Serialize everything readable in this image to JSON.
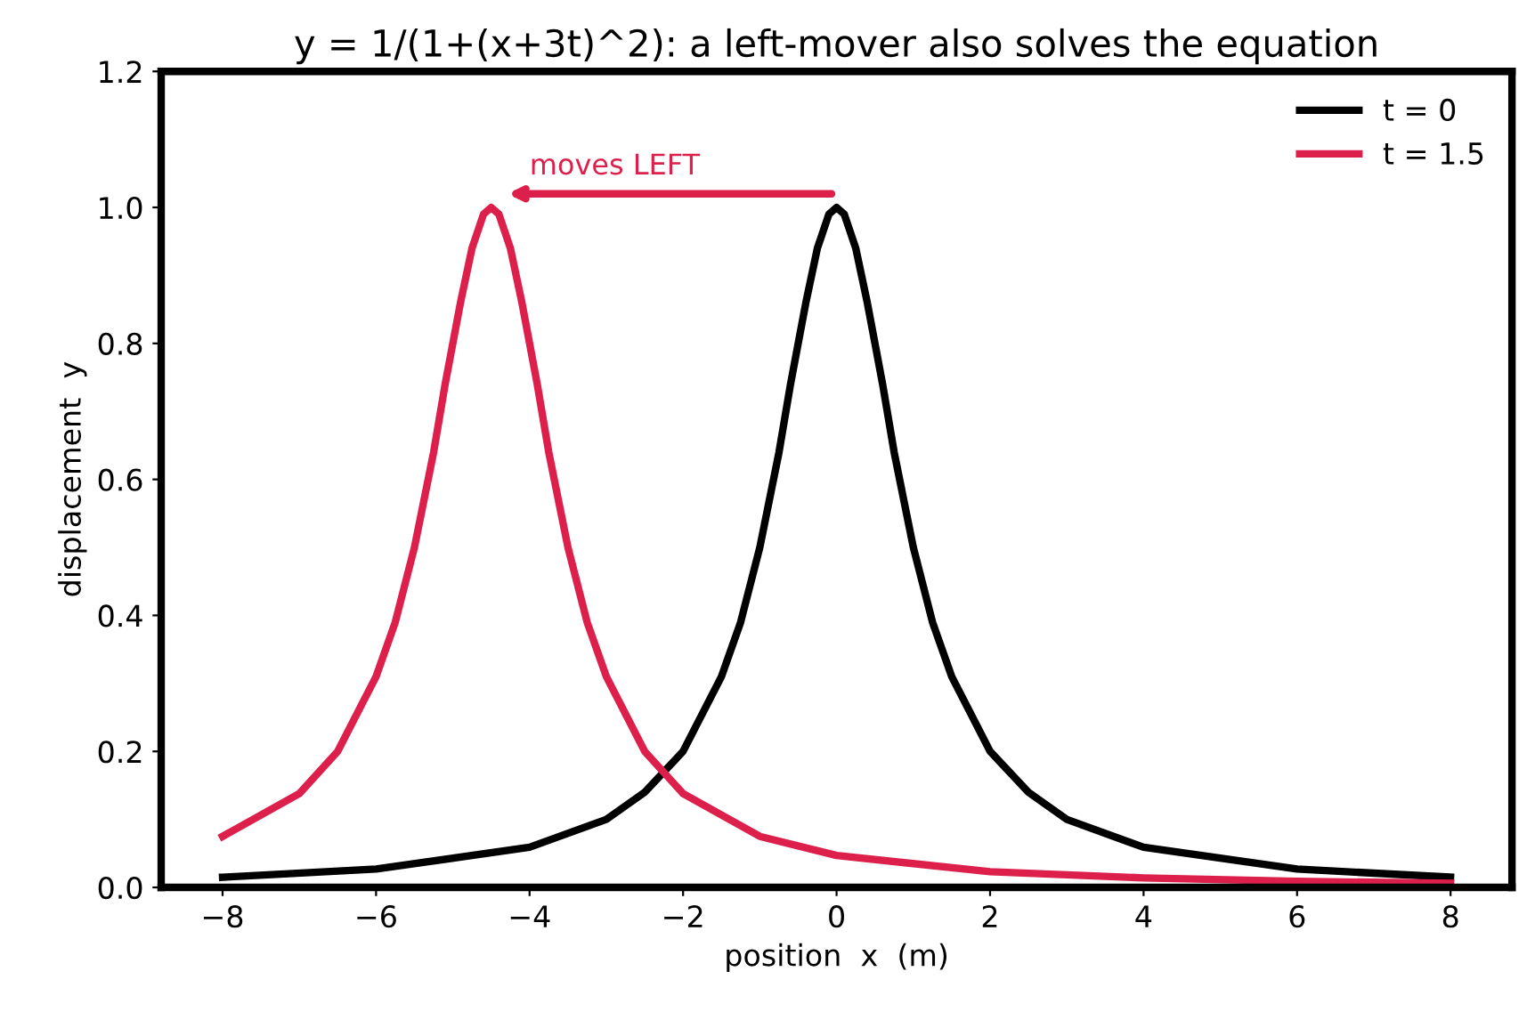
{
  "chart_data": {
    "type": "line",
    "title": "y = 1/(1+(x+3t)^2): a left-mover also solves the equation",
    "xlabel": "position  x  (m)",
    "ylabel": "displacement  y",
    "series": [
      {
        "name": "t = 0",
        "color": "#000000",
        "x": [
          -8,
          -6,
          -4,
          -3,
          -2.5,
          -2,
          -1.5,
          -1.25,
          -1,
          -0.75,
          -0.6,
          -0.5,
          -0.4,
          -0.25,
          -0.1,
          0,
          0.1,
          0.25,
          0.4,
          0.5,
          0.6,
          0.75,
          1,
          1.25,
          1.5,
          2,
          2.5,
          3,
          4,
          6,
          8
        ],
        "values": [
          0.015,
          0.027,
          0.059,
          0.1,
          0.14,
          0.2,
          0.31,
          0.39,
          0.5,
          0.64,
          0.74,
          0.8,
          0.86,
          0.94,
          0.99,
          1.0,
          0.99,
          0.94,
          0.86,
          0.8,
          0.74,
          0.64,
          0.5,
          0.39,
          0.31,
          0.2,
          0.14,
          0.1,
          0.059,
          0.027,
          0.015
        ]
      },
      {
        "name": "t = 1.5",
        "color": "#dc1f4b",
        "x": [
          -8,
          -7,
          -6.5,
          -6,
          -5.75,
          -5.5,
          -5.25,
          -5.1,
          -5,
          -4.9,
          -4.75,
          -4.6,
          -4.5,
          -4.4,
          -4.25,
          -4.1,
          -4,
          -3.9,
          -3.75,
          -3.5,
          -3.25,
          -3,
          -2.5,
          -2,
          -1,
          0,
          2,
          4,
          6,
          8
        ],
        "values": [
          0.075,
          0.138,
          0.2,
          0.31,
          0.39,
          0.5,
          0.64,
          0.74,
          0.8,
          0.86,
          0.94,
          0.99,
          1.0,
          0.99,
          0.94,
          0.86,
          0.8,
          0.74,
          0.64,
          0.5,
          0.39,
          0.31,
          0.2,
          0.138,
          0.075,
          0.047,
          0.023,
          0.014,
          0.009,
          0.006
        ]
      }
    ],
    "xlim": [
      -8.8,
      8.8
    ],
    "ylim": [
      0,
      1.2
    ],
    "xticks": [
      {
        "value": -8,
        "label": "−8"
      },
      {
        "value": -6,
        "label": "−6"
      },
      {
        "value": -4,
        "label": "−4"
      },
      {
        "value": -2,
        "label": "−2"
      },
      0,
      2,
      4,
      6,
      8
    ],
    "yticks": [
      {
        "value": 0,
        "label": "0.0"
      },
      0.2,
      0.4,
      0.6,
      0.8,
      {
        "value": 1,
        "label": "1.0"
      },
      1.2
    ],
    "annotations": [
      "moves LEFT"
    ],
    "legend": "top right",
    "grid": false,
    "line_style": "solid",
    "marker": "none"
  }
}
